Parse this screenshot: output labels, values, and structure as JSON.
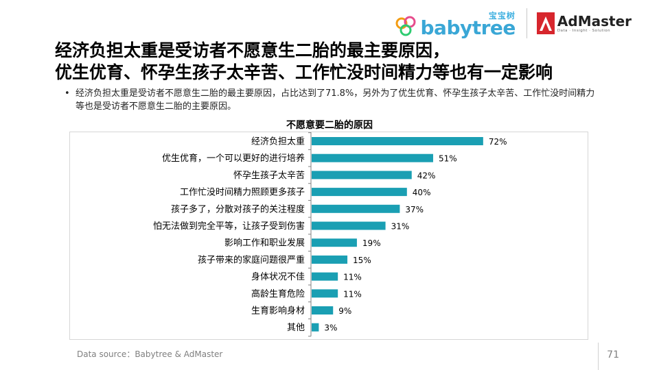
{
  "brand": {
    "babytree_cn": "宝宝树",
    "babytree_word": "babytree",
    "admaster_word": "AdMaster",
    "admaster_tagline": "Data · Insight · Solution"
  },
  "slide": {
    "title_line1": "经济负担太重是受访者不愿意生二胎的最主要原因，",
    "title_line2": "优生优育、怀孕生孩子太辛苦、工作忙没时间精力等也有一定影响",
    "bullet_mark": "•",
    "bullet_text": "经济负担太重是受访者不愿意生二胎的最主要原因，占比达到了71.8%，另外为了优生优育、怀孕生孩子太辛苦、工作忙没时间精力等也是受访者不愿意生二胎的主要原因。",
    "source": "Data source：Babytree & AdMaster",
    "page_number": "71"
  },
  "colors": {
    "bar": "#1a9fb3",
    "axis": "#7f7f7f",
    "accent_red": "#d7262d"
  },
  "chart_data": {
    "type": "bar",
    "orientation": "horizontal",
    "title": "不愿意要二胎的原因",
    "categories": [
      "经济负担太重",
      "优生优育，一个可以更好的进行培养",
      "怀孕生孩子太辛苦",
      "工作忙没时间精力照顾更多孩子",
      "孩子多了，分散对孩子的关注程度",
      "怕无法做到完全平等，让孩子受到伤害",
      "影响工作和职业发展",
      "孩子带来的家庭问题很严重",
      "身体状况不佳",
      "高龄生育危险",
      "生育影响身材",
      "其他"
    ],
    "values": [
      72,
      51,
      42,
      40,
      37,
      31,
      19,
      15,
      11,
      11,
      9,
      3
    ],
    "labels": [
      "72%",
      "51%",
      "42%",
      "40%",
      "37%",
      "31%",
      "19%",
      "15%",
      "11%",
      "11%",
      "9%",
      "3%"
    ],
    "unit": "%",
    "grid": false,
    "legend": "none"
  }
}
